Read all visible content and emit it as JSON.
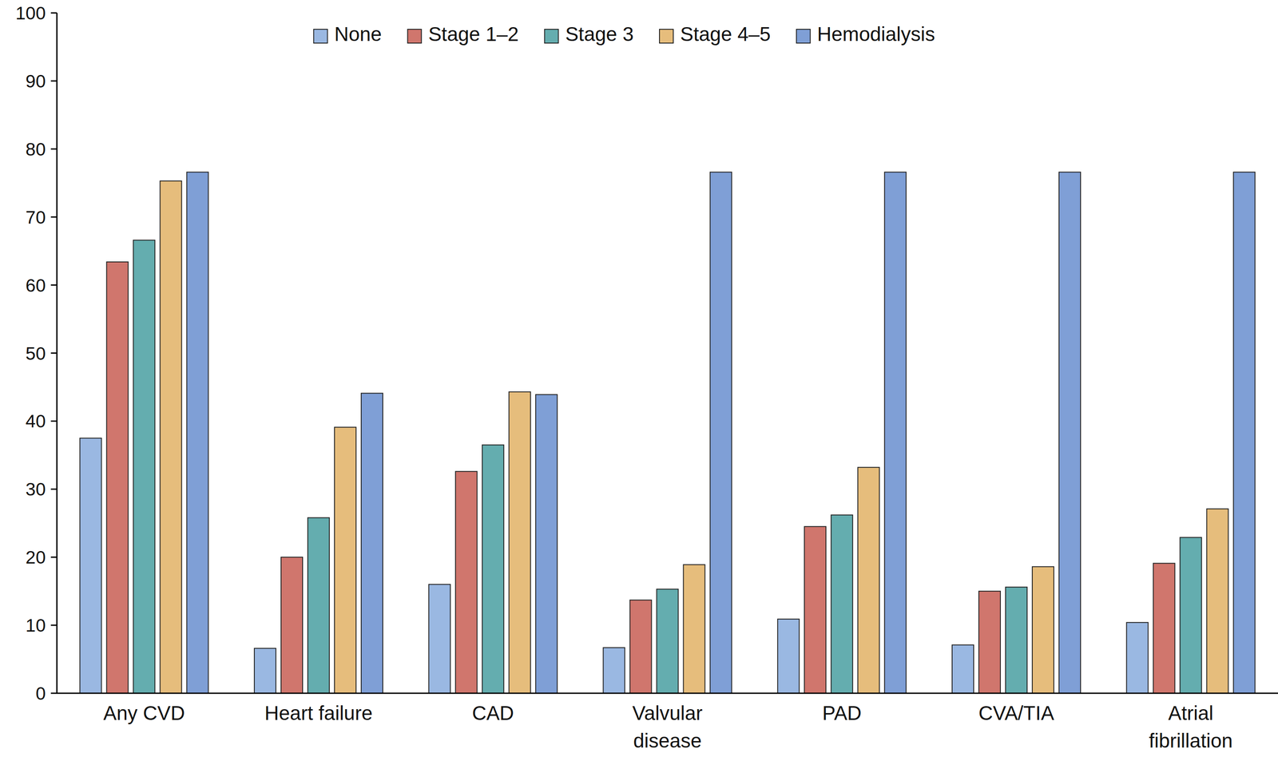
{
  "chart_data": {
    "type": "bar",
    "categories": [
      "Any CVD",
      "Heart failure",
      "CAD",
      "Valvular\ndisease",
      "PAD",
      "CVA/TIA",
      "Atrial\nfibrillation"
    ],
    "series": [
      {
        "name": "None",
        "color": "#9ab8e2",
        "values": [
          37.5,
          6.6,
          16.0,
          6.7,
          10.9,
          7.1,
          10.4
        ]
      },
      {
        "name": "Stage 1–2",
        "color": "#d0766d",
        "values": [
          63.4,
          20.0,
          32.6,
          13.7,
          24.5,
          15.0,
          19.1
        ]
      },
      {
        "name": "Stage 3",
        "color": "#64adaf",
        "values": [
          66.6,
          25.8,
          36.5,
          15.3,
          26.2,
          15.6,
          22.9
        ]
      },
      {
        "name": "Stage 4–5",
        "color": "#e6bd7c",
        "values": [
          75.3,
          39.1,
          44.3,
          18.9,
          33.2,
          18.6,
          27.1
        ]
      },
      {
        "name": "Hemodialysis",
        "color": "#7f9fd6",
        "values": [
          76.6,
          44.1,
          43.9,
          76.6,
          76.6,
          76.6,
          76.6
        ]
      }
    ],
    "ylim": [
      0,
      100
    ],
    "yticks": [
      0,
      10,
      20,
      30,
      40,
      50,
      60,
      70,
      80,
      90,
      100
    ],
    "grid": false,
    "legend": "top"
  }
}
